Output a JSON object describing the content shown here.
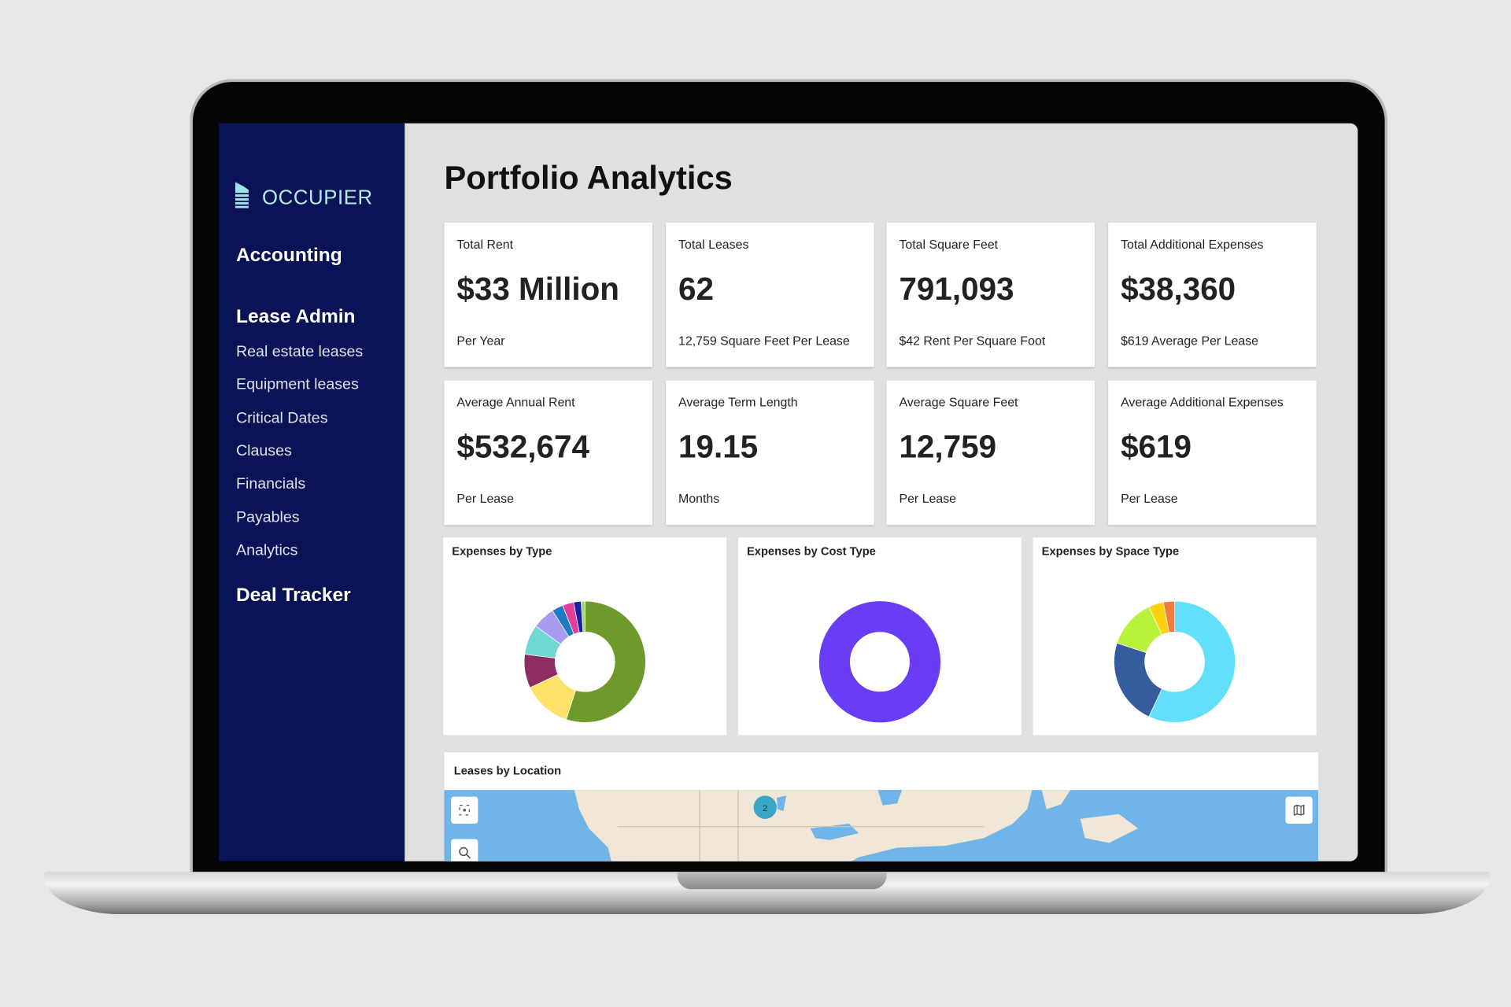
{
  "sidebar": {
    "brand": "OCCUPIER",
    "headings": [
      "Accounting",
      "Lease Admin",
      "Deal Tracker"
    ],
    "items": [
      "Real estate leases",
      "Equipment leases",
      "Critical Dates",
      "Clauses",
      "Financials",
      "Payables",
      "Analytics"
    ]
  },
  "page_title": "Portfolio Analytics",
  "cards": [
    {
      "label": "Total Rent",
      "value": "$33 Million",
      "sub": "Per Year"
    },
    {
      "label": "Total Leases",
      "value": "62",
      "sub": "12,759 Square Feet Per Lease"
    },
    {
      "label": "Total Square Feet",
      "value": "791,093",
      "sub": "$42 Rent Per Square Foot"
    },
    {
      "label": "Total Additional Expenses",
      "value": "$38,360",
      "sub": "$619 Average Per Lease"
    },
    {
      "label": "Average Annual Rent",
      "value": "$532,674",
      "sub": "Per Lease"
    },
    {
      "label": "Average Term Length",
      "value": "19.15",
      "sub": "Months"
    },
    {
      "label": "Average Square Feet",
      "value": "12,759",
      "sub": "Per Lease"
    },
    {
      "label": "Average Additional Expenses",
      "value": "$619",
      "sub": "Per Lease"
    }
  ],
  "chart_data": [
    {
      "type": "donut",
      "title": "Expenses by Type",
      "values": [
        55,
        13,
        9,
        8,
        6,
        3,
        3,
        2,
        1
      ],
      "colors": [
        "#6d9a2a",
        "#fde26a",
        "#8e2d5f",
        "#6fd8d0",
        "#a89cf0",
        "#1f7ac4",
        "#e0409a",
        "#1b1fa8",
        "#9fd86b"
      ]
    },
    {
      "type": "donut",
      "title": "Expenses by Cost Type",
      "values": [
        100
      ],
      "colors": [
        "#6a3cf5"
      ]
    },
    {
      "type": "donut",
      "title": "Expenses by Space Type",
      "values": [
        57,
        23,
        13,
        4,
        3
      ],
      "colors": [
        "#62e0fb",
        "#355d9e",
        "#b9f23a",
        "#fcd20e",
        "#f47b3d"
      ]
    }
  ],
  "map": {
    "title": "Leases by Location",
    "cluster": "2"
  }
}
